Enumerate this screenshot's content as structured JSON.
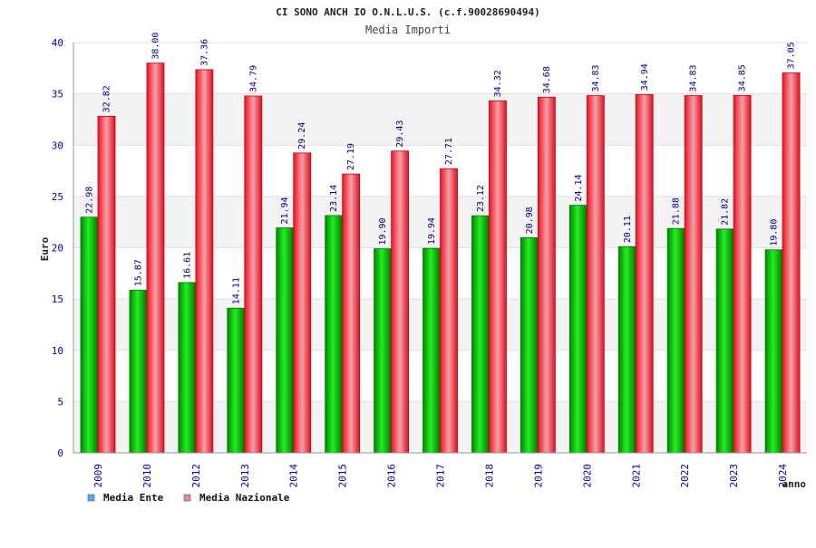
{
  "chart_data": {
    "type": "bar",
    "title": "CI SONO ANCH IO O.N.L.U.S. (c.f.90028690494)",
    "subtitle": "Media Importi",
    "xlabel": "anno",
    "ylabel": "Euro",
    "ylim": [
      0,
      40
    ],
    "yticks": [
      "0",
      "5",
      "10",
      "15",
      "20",
      "25",
      "30",
      "35",
      "40"
    ],
    "grid": true,
    "legend_position": "bottom-left",
    "categories": [
      "2009",
      "2010",
      "2012",
      "2013",
      "2014",
      "2015",
      "2016",
      "2017",
      "2018",
      "2019",
      "2020",
      "2021",
      "2022",
      "2023",
      "2024"
    ],
    "series": [
      {
        "name": "Media Ente",
        "color": "#00bb00",
        "legend_color": "#55aaee",
        "values": [
          22.98,
          15.87,
          16.61,
          14.11,
          21.94,
          23.14,
          19.9,
          19.94,
          23.12,
          20.98,
          24.14,
          20.11,
          21.88,
          21.82,
          19.8
        ],
        "labels": [
          "22.98",
          "15.87",
          "16.61",
          "14.11",
          "21.94",
          "23.14",
          "19.90",
          "19.94",
          "23.12",
          "20.98",
          "24.14",
          "20.11",
          "21.88",
          "21.82",
          "19.80"
        ]
      },
      {
        "name": "Media Nazionale",
        "color": "#ee1122",
        "legend_color": "#dd88aa",
        "values": [
          32.82,
          38.0,
          37.36,
          34.79,
          29.24,
          27.19,
          29.43,
          27.71,
          34.32,
          34.68,
          34.83,
          34.94,
          34.83,
          34.85,
          37.05
        ],
        "labels": [
          "32.82",
          "38.00",
          "37.36",
          "34.79",
          "29.24",
          "27.19",
          "29.43",
          "27.71",
          "34.32",
          "34.68",
          "34.83",
          "34.94",
          "34.83",
          "34.85",
          "37.05"
        ]
      }
    ]
  }
}
